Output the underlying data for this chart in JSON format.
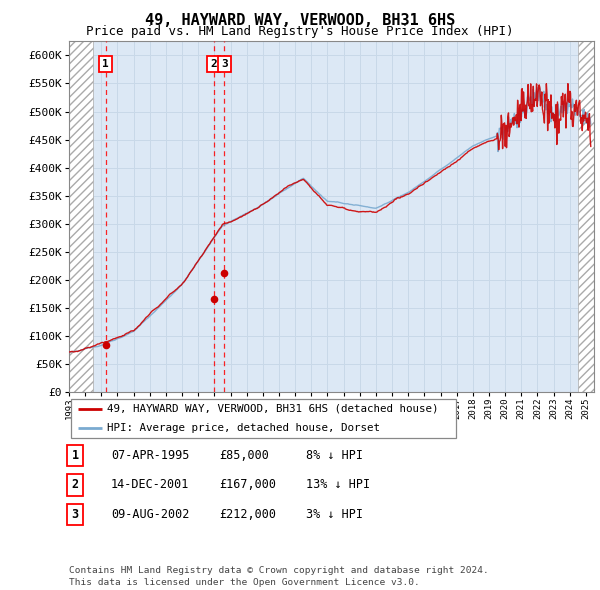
{
  "title1": "49, HAYWARD WAY, VERWOOD, BH31 6HS",
  "title2": "Price paid vs. HM Land Registry's House Price Index (HPI)",
  "ylabel_ticks": [
    "£0",
    "£50K",
    "£100K",
    "£150K",
    "£200K",
    "£250K",
    "£300K",
    "£350K",
    "£400K",
    "£450K",
    "£500K",
    "£550K",
    "£600K"
  ],
  "ytick_values": [
    0,
    50000,
    100000,
    150000,
    200000,
    250000,
    300000,
    350000,
    400000,
    450000,
    500000,
    550000,
    600000
  ],
  "ylim": [
    0,
    625000
  ],
  "xlim_start": 1993.0,
  "xlim_end": 2025.5,
  "hatch_left_end": 1994.5,
  "hatch_right_start": 2024.5,
  "purchases": [
    {
      "date_num": 1995.27,
      "price": 85000,
      "label": "1"
    },
    {
      "date_num": 2001.96,
      "price": 167000,
      "label": "2"
    },
    {
      "date_num": 2002.61,
      "price": 212000,
      "label": "3"
    }
  ],
  "legend_line1": "49, HAYWARD WAY, VERWOOD, BH31 6HS (detached house)",
  "legend_line2": "HPI: Average price, detached house, Dorset",
  "table_rows": [
    {
      "num": "1",
      "date": "07-APR-1995",
      "price": "£85,000",
      "hpi": "8% ↓ HPI"
    },
    {
      "num": "2",
      "date": "14-DEC-2001",
      "price": "£167,000",
      "hpi": "13% ↓ HPI"
    },
    {
      "num": "3",
      "date": "09-AUG-2002",
      "price": "£212,000",
      "hpi": "3% ↓ HPI"
    }
  ],
  "footer": "Contains HM Land Registry data © Crown copyright and database right 2024.\nThis data is licensed under the Open Government Licence v3.0.",
  "hpi_color": "#7aaad0",
  "price_color": "#cc0000",
  "grid_color": "#c8d8e8",
  "plot_bg": "#dce8f5"
}
